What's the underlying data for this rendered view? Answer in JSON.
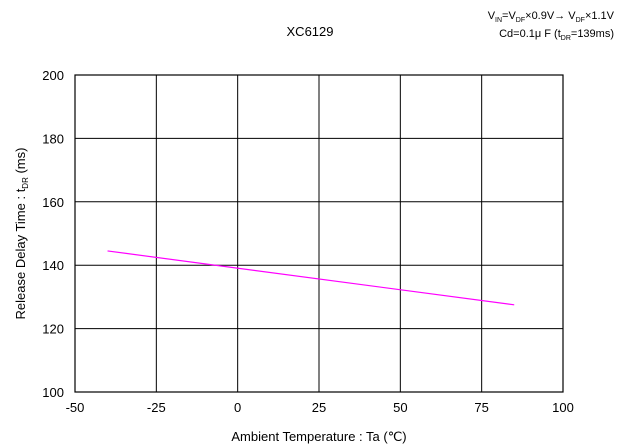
{
  "chart_data": {
    "type": "line",
    "title": "XC6129",
    "conditions": {
      "line1_parts": [
        {
          "t": "V"
        },
        {
          "s": "IN"
        },
        {
          "t": "=V"
        },
        {
          "s": "DF"
        },
        {
          "t": "×0.9V→ V"
        },
        {
          "s": "DF"
        },
        {
          "t": "×1.1V"
        }
      ],
      "line2_parts": [
        {
          "t": "Cd=0.1μ F (t"
        },
        {
          "s": "DR"
        },
        {
          "t": "=139ms)"
        }
      ]
    },
    "xlabel": "Ambient Temperature : Ta (℃)",
    "ylabel_parts": [
      {
        "t": "Release Delay Time : t"
      },
      {
        "s": "DR"
      },
      {
        "t": " (ms)"
      }
    ],
    "xlim": [
      -50,
      100
    ],
    "ylim": [
      100,
      200
    ],
    "xticks": [
      -50,
      -25,
      0,
      25,
      50,
      75,
      100
    ],
    "yticks": [
      100,
      120,
      140,
      160,
      180,
      200
    ],
    "grid": true,
    "series": [
      {
        "color": "#ff00ff",
        "x": [
          -40,
          85
        ],
        "y": [
          144.5,
          127.5
        ]
      }
    ]
  }
}
